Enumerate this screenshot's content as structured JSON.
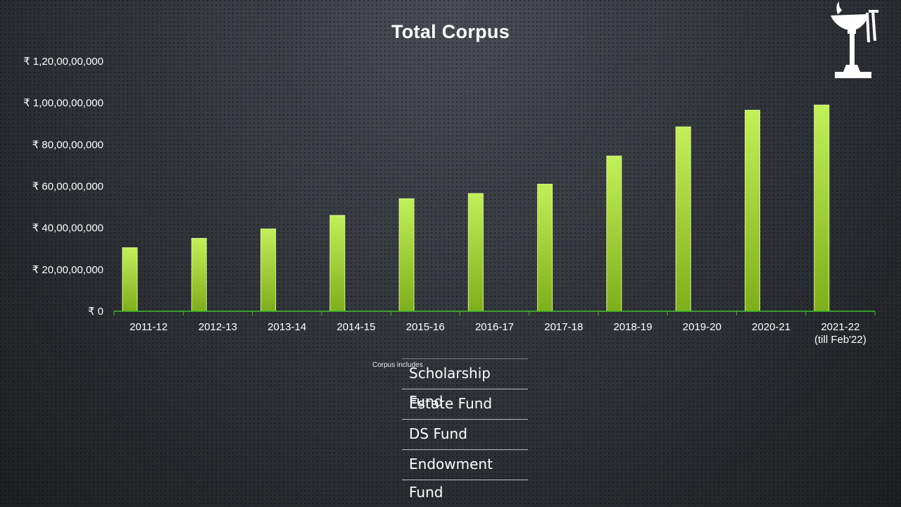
{
  "chart_data": {
    "type": "bar",
    "title": "Total Corpus",
    "xlabel": "",
    "ylabel": "",
    "categories": [
      "2011-12",
      "2012-13",
      "2013-14",
      "2014-15",
      "2015-16",
      "2016-17",
      "2017-18",
      "2018-19",
      "2019-20",
      "2020-21",
      "2021-22\n(till Feb'22)"
    ],
    "values": [
      305000000,
      350000000,
      395000000,
      460000000,
      540000000,
      565000000,
      610000000,
      745000000,
      885000000,
      965000000,
      990000000
    ],
    "ylim": [
      0,
      1200000000
    ],
    "yticks": [
      0,
      200000000,
      400000000,
      600000000,
      800000000,
      1000000000,
      1200000000
    ],
    "ytick_labels": [
      "₹ 0",
      "₹ 20,00,00,000",
      "₹ 40,00,00,000",
      "₹ 60,00,00,000",
      "₹ 80,00,00,000",
      "₹ 1,00,00,00,000",
      "₹ 1,20,00,00,000"
    ],
    "grid": false,
    "bar_color": "#9ccf3c",
    "axis_color": "#3fbf2a"
  },
  "legend": {
    "note": "Corpus includes",
    "items": [
      "Scholarship Fund",
      "Estate Fund",
      "DS Fund",
      "Endowment Fund"
    ]
  },
  "logo": {
    "icon": "lamp-logo-icon"
  }
}
